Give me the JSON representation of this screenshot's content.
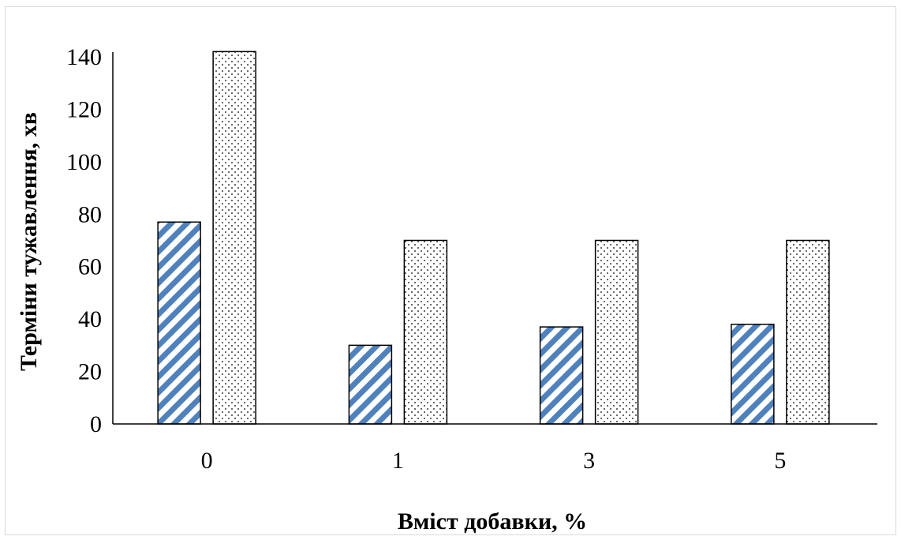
{
  "chart_data": {
    "type": "bar",
    "title": "",
    "xlabel": "Вміст добавки, %",
    "ylabel": "Терміни тужавлення, хв",
    "categories": [
      "0",
      "1",
      "3",
      "5"
    ],
    "series": [
      {
        "values": [
          77,
          30,
          37,
          38
        ],
        "pattern": "diagonal-stripes",
        "color": "#4f81bd"
      },
      {
        "values": [
          142,
          70,
          70,
          70
        ],
        "pattern": "dots",
        "color": "#000000"
      }
    ],
    "ylim": [
      0,
      140
    ],
    "yticks": [
      0,
      20,
      40,
      60,
      80,
      100,
      120,
      140
    ],
    "grid": false,
    "legend": "none"
  }
}
